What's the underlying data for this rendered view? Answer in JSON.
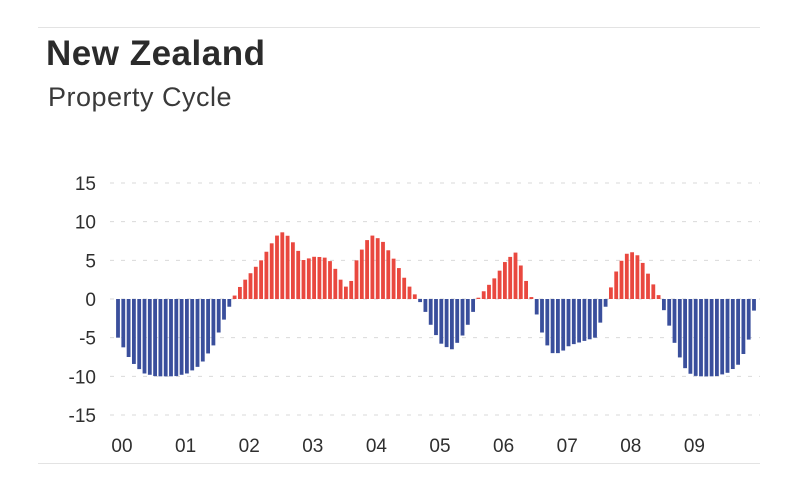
{
  "title": "New Zealand",
  "subtitle": "Property Cycle",
  "chart_data": {
    "type": "bar",
    "title": "New Zealand",
    "subtitle": "Property Cycle",
    "xlabel": "",
    "ylabel": "",
    "ylim": [
      -15,
      15
    ],
    "yticks": [
      15,
      10,
      5,
      0,
      -5,
      -10,
      -15
    ],
    "xticks": [
      "00",
      "01",
      "02",
      "03",
      "04",
      "05",
      "06",
      "07",
      "08",
      "09"
    ],
    "xlim": [
      2000.0,
      2010.0
    ],
    "grid": true,
    "colors": {
      "positive": "#e9483f",
      "negative": "#3a4f9c",
      "grid": "#d9d9d9"
    },
    "keypoints": [
      [
        2000.0,
        -5
      ],
      [
        2000.2,
        -8
      ],
      [
        2000.4,
        -9.6
      ],
      [
        2000.6,
        -10
      ],
      [
        2000.9,
        -10
      ],
      [
        2001.1,
        -9.6
      ],
      [
        2001.3,
        -8.5
      ],
      [
        2001.5,
        -6
      ],
      [
        2001.65,
        -3
      ],
      [
        2001.8,
        0
      ],
      [
        2001.95,
        2
      ],
      [
        2002.1,
        3.5
      ],
      [
        2002.25,
        5
      ],
      [
        2002.4,
        7
      ],
      [
        2002.55,
        8.8
      ],
      [
        2002.7,
        8
      ],
      [
        2002.85,
        6
      ],
      [
        2002.9,
        5
      ],
      [
        2003.1,
        5.5
      ],
      [
        2003.3,
        5.3
      ],
      [
        2003.45,
        3.5
      ],
      [
        2003.55,
        1.5
      ],
      [
        2003.65,
        1.8
      ],
      [
        2003.75,
        5
      ],
      [
        2003.9,
        7.5
      ],
      [
        2004.0,
        8.2
      ],
      [
        2004.15,
        7.6
      ],
      [
        2004.35,
        5
      ],
      [
        2004.55,
        2
      ],
      [
        2004.8,
        -1
      ],
      [
        2004.95,
        -4
      ],
      [
        2005.1,
        -6
      ],
      [
        2005.25,
        -6.5
      ],
      [
        2005.4,
        -5
      ],
      [
        2005.55,
        -2.5
      ],
      [
        2005.65,
        0
      ],
      [
        2005.8,
        1.5
      ],
      [
        2005.95,
        3
      ],
      [
        2006.1,
        5
      ],
      [
        2006.25,
        6
      ],
      [
        2006.35,
        4
      ],
      [
        2006.45,
        1.5
      ],
      [
        2006.55,
        -1
      ],
      [
        2006.65,
        -4
      ],
      [
        2006.8,
        -7
      ],
      [
        2006.95,
        -7
      ],
      [
        2007.1,
        -6
      ],
      [
        2007.3,
        -5.5
      ],
      [
        2007.5,
        -5
      ],
      [
        2007.65,
        -1.5
      ],
      [
        2007.7,
        0
      ],
      [
        2007.8,
        3
      ],
      [
        2007.95,
        5.5
      ],
      [
        2008.05,
        6.2
      ],
      [
        2008.2,
        5.5
      ],
      [
        2008.35,
        3
      ],
      [
        2008.5,
        0.5
      ],
      [
        2008.65,
        -3
      ],
      [
        2008.8,
        -7
      ],
      [
        2008.95,
        -9.5
      ],
      [
        2009.1,
        -10
      ],
      [
        2009.4,
        -10
      ],
      [
        2009.6,
        -9.5
      ],
      [
        2009.75,
        -8.5
      ],
      [
        2009.9,
        -6
      ],
      [
        2010.0,
        -1.5
      ],
      [
        2010.04,
        0
      ]
    ]
  }
}
